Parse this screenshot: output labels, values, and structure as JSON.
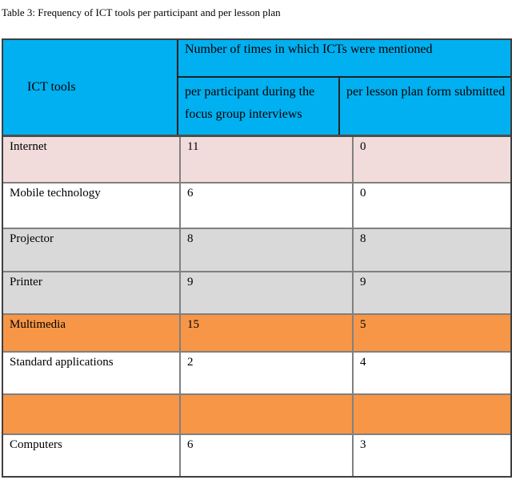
{
  "page": {
    "title": "Table 3: Frequency of ICT tools per participant and per lesson plan"
  },
  "table": {
    "colors": {
      "header_bg": "#00b0f0",
      "row_pink": "#f2dcdb",
      "row_gray": "#d9d9d9",
      "row_orange": "#f79646",
      "row_white": "#ffffff",
      "border_inner": "#808080",
      "border_outer": "#3f3f3f"
    },
    "header": {
      "col1": "ICT tools",
      "span": "Number of times in which ICTs were mentioned",
      "sub1": "per participant during the focus group interviews",
      "sub2": "per lesson plan form submitted"
    },
    "rows": [
      {
        "tool": "Internet",
        "per_participant": "11",
        "per_lesson": "0",
        "bg": "#f2dcdb"
      },
      {
        "tool": "Mobile technology",
        "per_participant": "6",
        "per_lesson": "0",
        "bg": "#ffffff"
      },
      {
        "tool": "Projector",
        "per_participant": "8",
        "per_lesson": "8",
        "bg": "#d9d9d9"
      },
      {
        "tool": "Printer",
        "per_participant": "9",
        "per_lesson": "9",
        "bg": "#d9d9d9"
      },
      {
        "tool": "Multimedia",
        "per_participant": "15",
        "per_lesson": "5",
        "bg": "#f79646"
      },
      {
        "tool": "Standard applications",
        "per_participant": "2",
        "per_lesson": "4",
        "bg": "#ffffff"
      },
      {
        "tool": "",
        "per_participant": "",
        "per_lesson": "",
        "bg": "#f79646"
      },
      {
        "tool": "Computers",
        "per_participant": "6",
        "per_lesson": "3",
        "bg": "#ffffff"
      }
    ]
  }
}
